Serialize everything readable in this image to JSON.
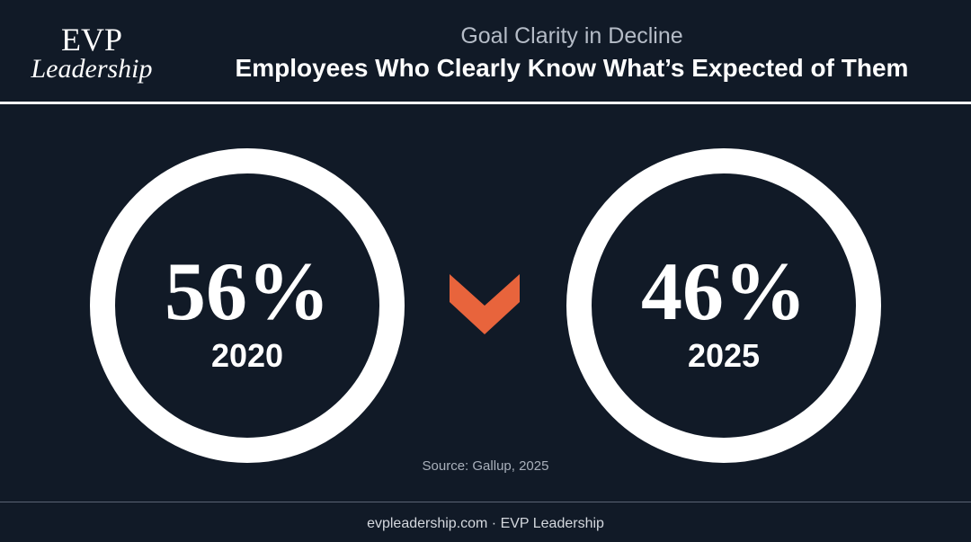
{
  "header": {
    "logo": {
      "line1": "EVP",
      "line2": "Leadership"
    },
    "subtitle": "Goal Clarity in Decline",
    "title": "Employees Who Clearly Know What’s Expected of Them"
  },
  "stats": [
    {
      "value": "56%",
      "year": "2020"
    },
    {
      "value": "46%",
      "year": "2025"
    }
  ],
  "source": "Source: Gallup, 2025",
  "footer": "evpleadership.com · EVP Leadership"
}
